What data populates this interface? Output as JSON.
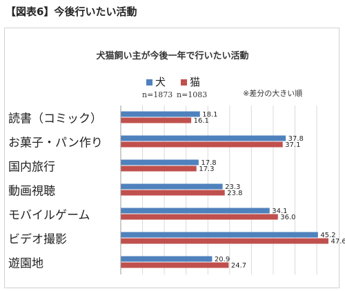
{
  "page_title": "【図表6】今後行いたい活動",
  "chart_data": {
    "type": "bar",
    "orientation": "horizontal",
    "title": "犬猫飼い主が今後一年で行いたい活動",
    "note": "※差分の大きい順",
    "categories": [
      "読書（コミック）",
      "お菓子・パン作り",
      "国内旅行",
      "動画視聴",
      "モバイルゲーム",
      "ビデオ撮影",
      "遊園地"
    ],
    "series": [
      {
        "name": "犬",
        "n_label": "n=1873",
        "color": "#4f81bd",
        "values": [
          18.1,
          37.8,
          17.8,
          23.3,
          34.1,
          45.2,
          20.9
        ]
      },
      {
        "name": "猫",
        "n_label": "n=1083",
        "color": "#c0504d",
        "values": [
          16.1,
          37.1,
          17.3,
          23.8,
          36.0,
          47.6,
          24.7
        ]
      }
    ],
    "xlim": [
      0,
      48
    ],
    "grid": true,
    "legend_position": "top-center"
  }
}
